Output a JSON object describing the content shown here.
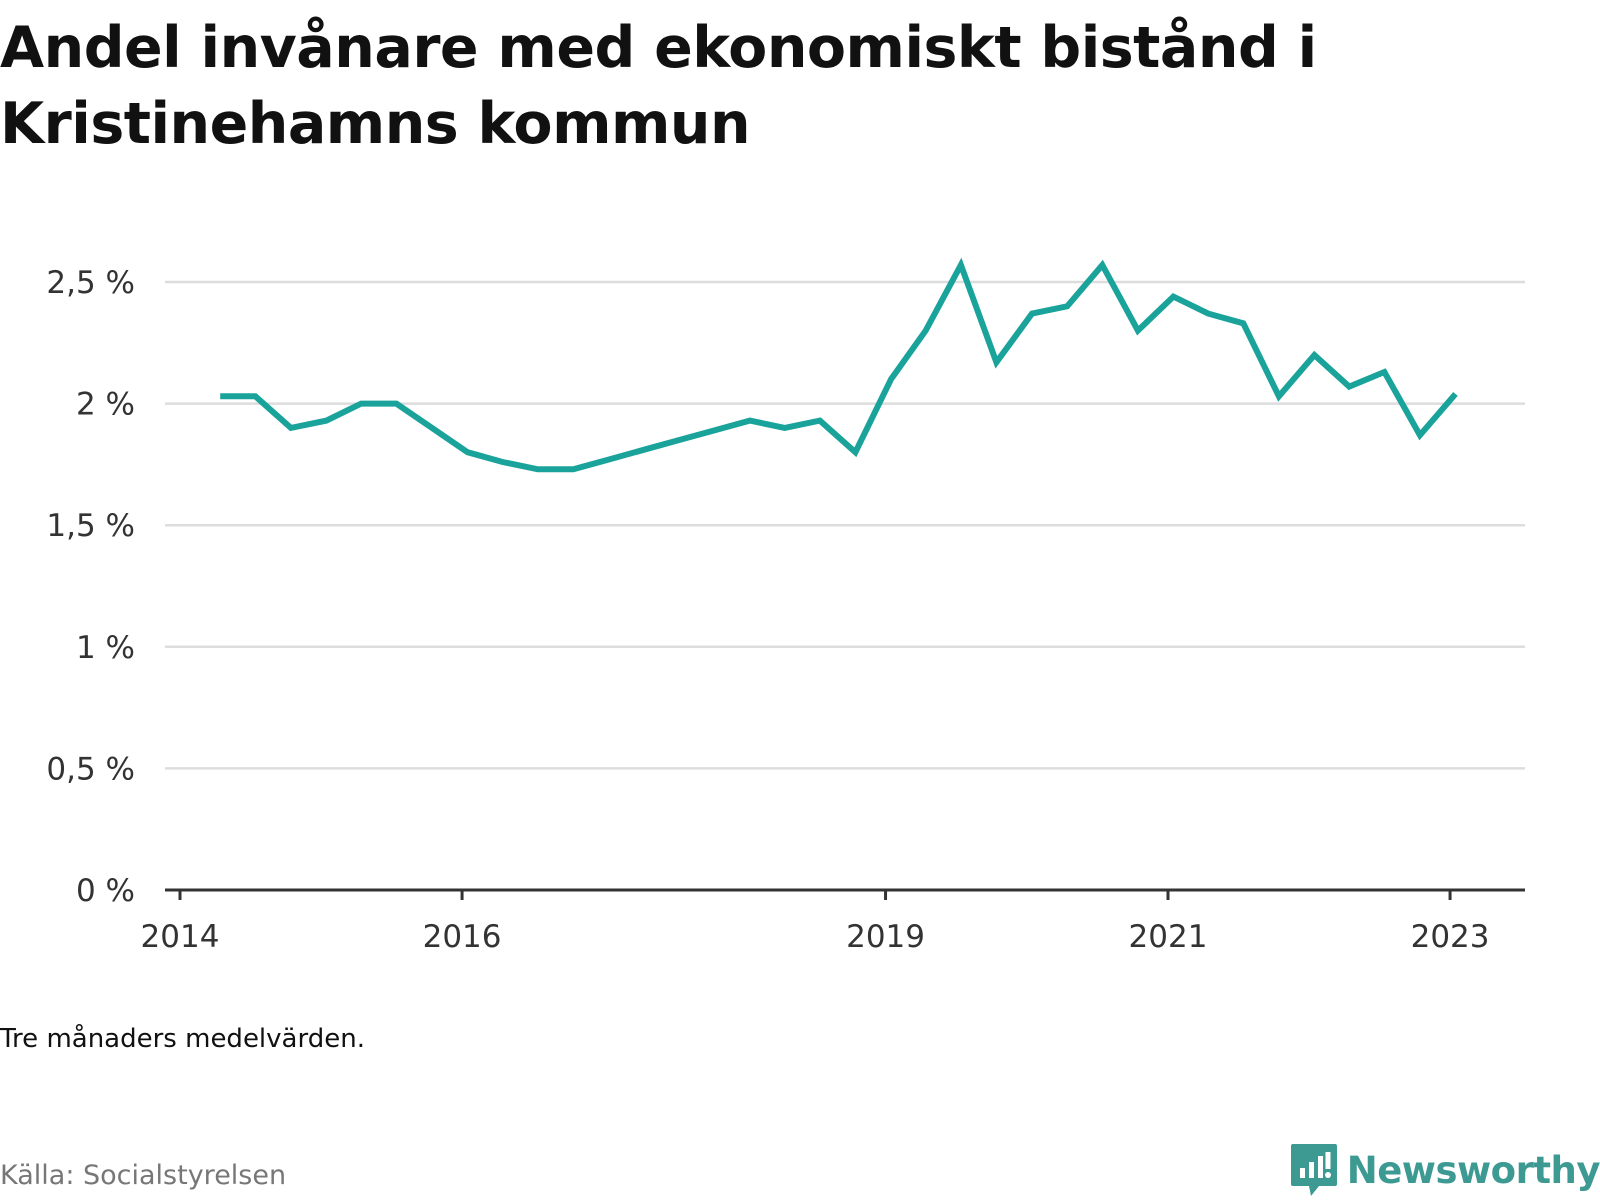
{
  "chart_data": {
    "type": "line",
    "title": "Andel invånare med ekonomiskt bistånd i Kristinehamns kommun",
    "note": "Tre månaders medelvärden.",
    "source": "Källa: Socialstyrelsen",
    "brand": "Newsworthy",
    "xlim": [
      "2014-01-01",
      "2023-07-01"
    ],
    "ylim": [
      0,
      2.5
    ],
    "y_ticks": [
      0,
      0.5,
      1,
      1.5,
      2,
      2.5
    ],
    "y_tick_labels": [
      "0 %",
      "0,5 %",
      "1 %",
      "1,5 %",
      "2 %",
      "2,5 %"
    ],
    "x_ticks": [
      "2014-01-01",
      "2016-01-01",
      "2019-01-01",
      "2021-01-01",
      "2023-01-01"
    ],
    "x_tick_labels": [
      "2014",
      "2016",
      "2019",
      "2021",
      "2023"
    ],
    "grid": true,
    "line_color": "#1aa39a",
    "series": [
      {
        "x": [
          "2014-04-15",
          "2014-07-15",
          "2014-10-15",
          "2015-01-15",
          "2015-04-15",
          "2015-07-15",
          "2015-10-15",
          "2016-01-15",
          "2016-04-15",
          "2016-07-15",
          "2016-10-15",
          "2017-01-15",
          "2017-04-15",
          "2017-07-15",
          "2017-10-15",
          "2018-01-15",
          "2018-04-15",
          "2018-07-15",
          "2018-10-15",
          "2019-01-15",
          "2019-04-15",
          "2019-07-15",
          "2019-10-15",
          "2020-01-15",
          "2020-04-15",
          "2020-07-15",
          "2020-10-15",
          "2021-01-15",
          "2021-04-15",
          "2021-07-15",
          "2021-10-15",
          "2022-01-15",
          "2022-04-15",
          "2022-07-15",
          "2022-10-15",
          "2023-01-15"
        ],
        "values": [
          2.03,
          2.03,
          1.9,
          1.93,
          2.0,
          2.0,
          1.9,
          1.8,
          1.76,
          1.73,
          1.73,
          1.77,
          1.81,
          1.85,
          1.89,
          1.93,
          1.9,
          1.93,
          1.8,
          2.1,
          2.3,
          2.57,
          2.17,
          2.37,
          2.4,
          2.57,
          2.3,
          2.44,
          2.37,
          2.33,
          2.03,
          2.2,
          2.07,
          2.13,
          1.87,
          2.04
        ]
      }
    ]
  }
}
